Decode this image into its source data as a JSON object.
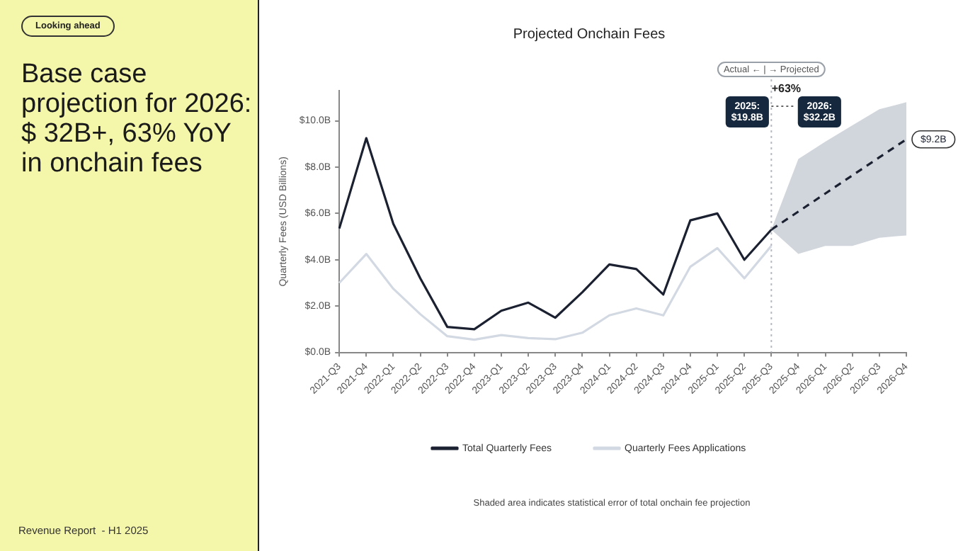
{
  "chart_data": {
    "type": "line",
    "title": "Projected Onchain Fees",
    "subtitle": "Base case projection for 2026: $ 32B+, 63% YoY in onchain fees",
    "ylabel": "Quarterly Fees (USD Billions)",
    "categories": [
      "2021-Q3",
      "2021-Q4",
      "2022-Q1",
      "2022-Q2",
      "2022-Q3",
      "2022-Q4",
      "2023-Q1",
      "2023-Q2",
      "2023-Q3",
      "2023-Q4",
      "2024-Q1",
      "2024-Q2",
      "2024-Q3",
      "2024-Q4",
      "2025-Q1",
      "2025-Q2",
      "2025-Q3",
      "2025-Q4",
      "2026-Q1",
      "2026-Q2",
      "2026-Q3",
      "2026-Q4"
    ],
    "series": [
      {
        "name": "Total Quarterly Fees",
        "color": "#1b2130",
        "values": [
          5.35,
          9.25,
          5.55,
          3.2,
          1.1,
          1.0,
          1.8,
          2.15,
          1.5,
          2.6,
          3.8,
          3.6,
          2.5,
          5.7,
          6.0,
          4.0,
          5.3,
          null,
          null,
          null,
          null,
          null
        ]
      },
      {
        "name": "Quarterly Fees Applications",
        "color": "#d3d9e2",
        "values": [
          3.0,
          4.25,
          2.75,
          1.65,
          0.7,
          0.55,
          0.75,
          0.62,
          0.57,
          0.85,
          1.6,
          1.9,
          1.6,
          3.7,
          4.5,
          3.2,
          4.6,
          null,
          null,
          null,
          null,
          null
        ]
      },
      {
        "color": "#1b2130",
        "line_style": "dashed",
        "values": [
          null,
          null,
          null,
          null,
          null,
          null,
          null,
          null,
          null,
          null,
          null,
          null,
          null,
          null,
          null,
          null,
          5.3,
          6.08,
          6.86,
          7.64,
          8.42,
          9.2
        ],
        "lower": [
          null,
          null,
          null,
          null,
          null,
          null,
          null,
          null,
          null,
          null,
          null,
          null,
          null,
          null,
          null,
          null,
          5.3,
          4.25,
          4.6,
          4.6,
          4.95,
          5.05
        ],
        "upper": [
          null,
          null,
          null,
          null,
          null,
          null,
          null,
          null,
          null,
          null,
          null,
          null,
          null,
          null,
          null,
          null,
          5.3,
          8.35,
          9.1,
          9.8,
          10.5,
          10.8
        ]
      }
    ],
    "ylim": [
      0,
      11.3
    ],
    "yticks": [
      {
        "value": 0,
        "label": "$0.0B"
      },
      {
        "value": 2,
        "label": "$2.0B"
      },
      {
        "value": 4,
        "label": "$4.0B"
      },
      {
        "value": 6,
        "label": "$6.0B"
      },
      {
        "value": 8,
        "label": "$8.0B"
      },
      {
        "value": 10,
        "label": "$10.0B"
      }
    ],
    "ref_lines": [
      {
        "axis": "x",
        "value": "2025-Q3",
        "label": "Actual ← | → Projected",
        "color": "#b5b9c0",
        "line_style": "dotted"
      }
    ],
    "annotations": [
      "Looking ahead",
      "Revenue Report  - H1 2025",
      "2025: $19.8B",
      "+63%",
      "2026: $32.2B",
      {
        "text": "$9.2B",
        "x": "2026-Q4",
        "y": 9.2
      },
      "Shaded area indicates statistical error of total onchain fee projection"
    ],
    "grid": false,
    "legend": "bottom",
    "marker": "none",
    "line_style": "solid"
  }
}
